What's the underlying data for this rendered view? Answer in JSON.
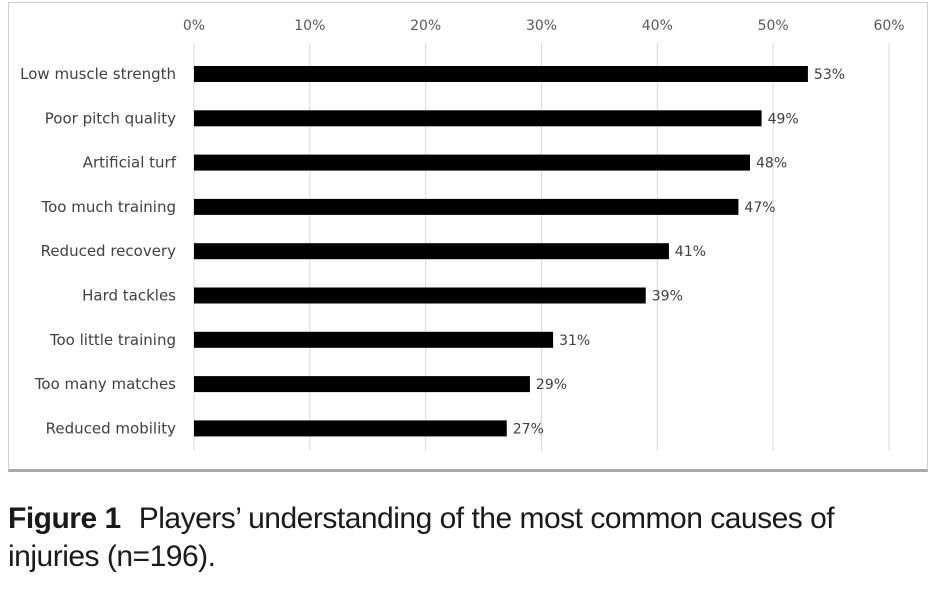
{
  "chart_data": {
    "type": "bar",
    "orientation": "horizontal",
    "categories": [
      "Low muscle strength",
      "Poor pitch quality",
      "Artificial turf",
      "Too much training",
      "Reduced recovery",
      "Hard tackles",
      "Too little training",
      "Too many matches",
      "Reduced mobility"
    ],
    "values": [
      53,
      49,
      48,
      47,
      41,
      39,
      31,
      29,
      27
    ],
    "value_labels": [
      "53%",
      "49%",
      "48%",
      "47%",
      "41%",
      "39%",
      "31%",
      "29%",
      "27%"
    ],
    "xlim": [
      0,
      60
    ],
    "x_ticks": [
      0,
      10,
      20,
      30,
      40,
      50,
      60
    ],
    "x_tick_labels": [
      "0%",
      "10%",
      "20%",
      "30%",
      "40%",
      "50%",
      "60%"
    ],
    "x_axis_position": "top",
    "grid": "vertical",
    "bar_color": "#000000",
    "grid_color": "#d9d9d9"
  },
  "caption": {
    "label": "Figure 1",
    "text": "Players’ understanding of the most common causes of injuries (n=196)."
  }
}
